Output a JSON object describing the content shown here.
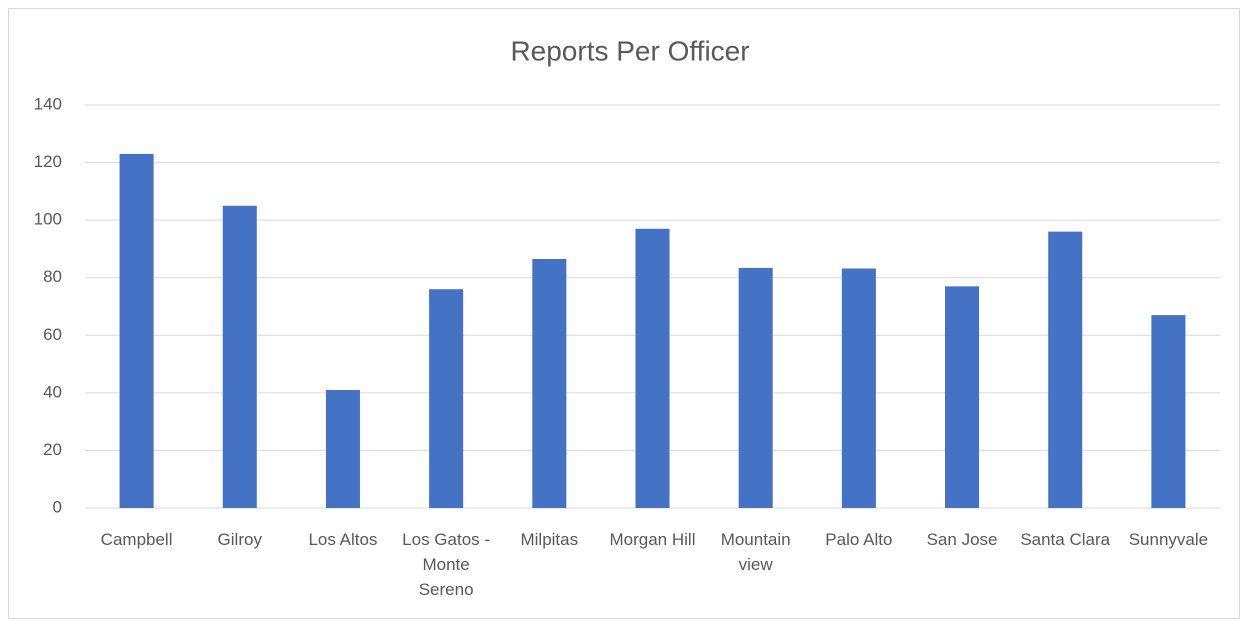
{
  "chart_data": {
    "type": "bar",
    "title": "Reports Per Officer",
    "categories": [
      "Campbell",
      "Gilroy",
      "Los Altos",
      "Los Gatos - Monte Sereno",
      "Milpitas",
      "Morgan Hill",
      "Mountain view",
      "Palo Alto",
      "San Jose",
      "Santa Clara",
      "Sunnyvale"
    ],
    "values": [
      123,
      105,
      41,
      76,
      86.5,
      97,
      83.4,
      83.2,
      77,
      96,
      67
    ],
    "color": "#4472c4",
    "ylim": [
      0,
      140
    ],
    "yticks": [
      0,
      20,
      40,
      60,
      80,
      100,
      120,
      140
    ],
    "grid": true
  }
}
